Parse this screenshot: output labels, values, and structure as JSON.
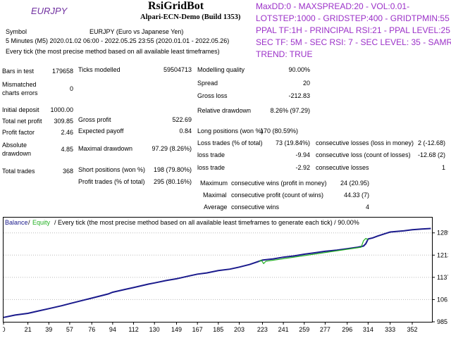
{
  "header": {
    "symbol_logo": "EURJPY",
    "title": "RsiGridBot",
    "subtitle": "Alpari-ECN-Demo (Build 1353)"
  },
  "params": [
    "MaxDD:0 - MAXSPREAD:20 - VOL:0.01-",
    "LOTSTEP:1000 - GRIDSTEP:400 - GRIDTPMIN:55 -",
    "PPAL TF:1H - PRINCIPAL RSI:21 - PPAL LEVEL:25",
    "SEC TF: 5M - SEC RSI: 7 - SEC LEVEL: 35 - SAMRT",
    "TREND: TRUE"
  ],
  "info": {
    "symbol_label": "Symbol",
    "symbol_value": "EURJPY (Euro vs Japanese Yen)",
    "period_line": "5 Minutes (M5) 2020.01.02 06:00 - 2022.05.25 23:55 (2020.01.01 - 2022.05.26)",
    "model_line": "Every tick (the most precise method based on all available least timeframes)"
  },
  "stats": {
    "bars_in_test": {
      "label": "Bars in test",
      "value": "179658"
    },
    "ticks_modelled": {
      "label": "Ticks modelled",
      "value": "59504713"
    },
    "modelling_quality": {
      "label": "Modelling quality",
      "value": "90.00%"
    },
    "mismatched": {
      "label1": "Mismatched",
      "label2": "charts errors",
      "value": "0"
    },
    "spread": {
      "label": "Spread",
      "value": "20"
    },
    "gross_loss": {
      "label": "Gross loss",
      "value": "-212.83"
    },
    "initial_deposit": {
      "label": "Initial deposit",
      "value": "1000.00"
    },
    "relative_drawdown": {
      "label": "Relative drawdown",
      "value": "8.26% (97.29)"
    },
    "total_net_profit": {
      "label": "Total net profit",
      "value": "309.85"
    },
    "gross_profit": {
      "label": "Gross profit",
      "value": "522.69"
    },
    "profit_factor": {
      "label": "Profit factor",
      "value": "2.46"
    },
    "expected_payoff": {
      "label": "Expected payoff",
      "value": "0.84"
    },
    "long_positions": {
      "label": "Long positions (won %)",
      "value": "170 (80.59%)"
    },
    "absolute_drawdown": {
      "label1": "Absolute",
      "label2": "drawdown",
      "value": "4.85"
    },
    "maximal_drawdown": {
      "label": "Maximal drawdown",
      "value": "97.29 (8.26%)"
    },
    "loss_trades": {
      "label": "Loss trades (% of total)",
      "value": "73 (19.84%)"
    },
    "cons_losses_money": {
      "label": "consecutive losses (loss in money)",
      "value": "2 (-12.68)"
    },
    "loss_trade_1": {
      "label": "loss trade",
      "value": "-9.94"
    },
    "cons_loss_count": {
      "label": "consecutive loss (count of losses)",
      "value": "-12.68 (2)"
    },
    "total_trades": {
      "label": "Total trades",
      "value": "368"
    },
    "short_positions": {
      "label": "Short positions (won %)",
      "value": "198 (79.80%)"
    },
    "loss_trade_2": {
      "label": "loss trade",
      "value": "-2.92"
    },
    "cons_losses": {
      "label": "consecutive losses",
      "value": "1"
    },
    "profit_trades": {
      "label": "Profit trades (% of total)",
      "value": "295 (80.16%)"
    },
    "max_cons_wins": {
      "label1": "Maximum",
      "label2": "consecutive wins (profit in money)",
      "value": "24 (20.95)"
    },
    "maximal_cons_profit": {
      "label1": "Maximal",
      "label2": "consecutive profit (count of wins)",
      "value": "44.33 (7)"
    },
    "average_cons_wins": {
      "label1": "Average",
      "label2": "consecutive wins",
      "value": "4"
    }
  },
  "colors": {
    "balance": "#1a1a8c",
    "equity": "#22b022",
    "params": "#9b30c8",
    "logo": "#7030a0"
  },
  "chart_data": {
    "type": "line",
    "legend": {
      "balance": "Balance",
      "sep": "/",
      "equity": "Equity",
      "rest": "/ Every tick (the most precise method based on all available least timeframes to generate each tick) / 90.00%"
    },
    "x_ticks": [
      "0",
      "21",
      "39",
      "57",
      "76",
      "94",
      "112",
      "130",
      "149",
      "167",
      "185",
      "203",
      "223",
      "241",
      "259",
      "277",
      "296",
      "314",
      "333",
      "352"
    ],
    "x_tick_values": [
      0,
      21,
      39,
      57,
      76,
      94,
      112,
      130,
      149,
      167,
      185,
      203,
      223,
      241,
      259,
      277,
      296,
      314,
      333,
      352
    ],
    "y_ticks": [
      "985",
      "1061",
      "1137",
      "1213",
      "1289"
    ],
    "y_tick_values": [
      985,
      1061,
      1137,
      1213,
      1289
    ],
    "xlim": [
      0,
      369
    ],
    "ylim": [
      985,
      1310
    ],
    "series": [
      {
        "name": "Balance",
        "x": [
          0,
          10,
          21,
          30,
          39,
          50,
          57,
          70,
          76,
          90,
          94,
          105,
          112,
          125,
          130,
          140,
          149,
          160,
          167,
          175,
          185,
          195,
          203,
          212,
          223,
          232,
          241,
          250,
          259,
          268,
          277,
          287,
          296,
          305,
          310,
          312,
          314,
          318,
          322,
          330,
          333,
          345,
          352,
          360,
          368
        ],
        "values": [
          1000,
          1008,
          1014,
          1022,
          1030,
          1040,
          1047,
          1060,
          1066,
          1080,
          1086,
          1096,
          1102,
          1114,
          1118,
          1126,
          1132,
          1142,
          1148,
          1152,
          1160,
          1165,
          1172,
          1181,
          1196,
          1200,
          1206,
          1210,
          1216,
          1221,
          1226,
          1230,
          1235,
          1240,
          1244,
          1252,
          1268,
          1272,
          1278,
          1288,
          1292,
          1296,
          1300,
          1302,
          1304
        ]
      },
      {
        "name": "Equity",
        "x": [
          220,
          222,
          224,
          226,
          308,
          310,
          312,
          314
        ],
        "values": [
          1190,
          1196,
          1184,
          1192,
          1240,
          1262,
          1270,
          1266
        ]
      }
    ]
  }
}
